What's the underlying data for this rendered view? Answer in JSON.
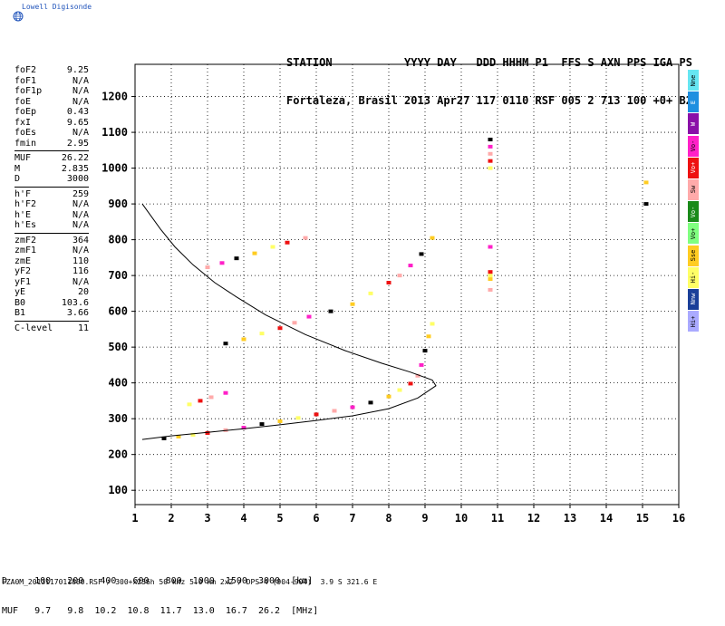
{
  "logo": {
    "text": "Lowell Digisonde"
  },
  "header": {
    "line1": "STATION           YYYY DAY   DDD HHHM P1  FFS S AXN PPS IGA PS",
    "line2": "Fortaleza, Brasil 2013 Apr27 117 0110 RSF 005 2 713 100 +0+ B2"
  },
  "params": {
    "group1": [
      {
        "label": "foF2",
        "value": "9.25"
      },
      {
        "label": "foF1",
        "value": "N/A"
      },
      {
        "label": "foF1p",
        "value": "N/A"
      },
      {
        "label": "foE",
        "value": "N/A"
      },
      {
        "label": "foEp",
        "value": "0.43"
      },
      {
        "label": "fxI",
        "value": "9.65"
      },
      {
        "label": "foEs",
        "value": "N/A"
      },
      {
        "label": "fmin",
        "value": "2.95"
      }
    ],
    "group2": [
      {
        "label": "MUF",
        "value": "26.22"
      },
      {
        "label": "M",
        "value": "2.835"
      },
      {
        "label": "D",
        "value": "3000"
      }
    ],
    "group3": [
      {
        "label": "h'F",
        "value": "259"
      },
      {
        "label": "h'F2",
        "value": "N/A"
      },
      {
        "label": "h'E",
        "value": "N/A"
      },
      {
        "label": "h'Es",
        "value": "N/A"
      }
    ],
    "group4": [
      {
        "label": "zmF2",
        "value": "364"
      },
      {
        "label": "zmF1",
        "value": "N/A"
      },
      {
        "label": "zmE",
        "value": "110"
      },
      {
        "label": "yF2",
        "value": "116"
      },
      {
        "label": "yF1",
        "value": "N/A"
      },
      {
        "label": "yE",
        "value": "20"
      },
      {
        "label": "B0",
        "value": "103.6"
      },
      {
        "label": "B1",
        "value": "3.66"
      }
    ],
    "group5": [
      {
        "label": "C-level",
        "value": "11"
      }
    ]
  },
  "legend": [
    {
      "label": "Nne",
      "color": "#66e6f2"
    },
    {
      "label": "E",
      "color": "#1e8fe0"
    },
    {
      "label": "W",
      "color": "#8a10a8"
    },
    {
      "label": "Vo-",
      "color": "#ff20c8"
    },
    {
      "label": "Vo+",
      "color": "#ee1111"
    },
    {
      "label": "Sw",
      "color": "#ffaaaa"
    },
    {
      "label": "Vo-",
      "color": "#1a8a1a"
    },
    {
      "label": "Vo+",
      "color": "#80ff80"
    },
    {
      "label": "Sse",
      "color": "#ffcc22"
    },
    {
      "label": "Hi-",
      "color": "#ffff66"
    },
    {
      "label": "Nnw",
      "color": "#1a3f99"
    },
    {
      "label": "Hi+",
      "color": "#aaaaff"
    }
  ],
  "muf_table": {
    "d_line": "D     100   200   400   600   800  1000  1500  3000  [km]",
    "muf_line": "MUF   9.7   9.8  10.2  10.8  11.7  13.0  16.7  26.2  [MHz]"
  },
  "footer": {
    "text": "FZA0M_2013117011000.RSF / 300+x256h 50 kHz 5.0 km 2x2 / DPS-4 (904-904)  3.9 S 321.6 E"
  },
  "chart_data": {
    "type": "scatter",
    "x_ticks": [
      1,
      2,
      3,
      4,
      5,
      6,
      7,
      8,
      9,
      10,
      11,
      12,
      13,
      14,
      15,
      16
    ],
    "y_ticks": [
      100,
      200,
      300,
      400,
      500,
      600,
      700,
      800,
      900,
      1000,
      1100,
      1200
    ],
    "xlim": [
      1,
      16
    ],
    "ylim": [
      60,
      1290
    ],
    "grid": true,
    "series": [
      {
        "points": [
          [
            1.8,
            245
          ],
          [
            2.2,
            250
          ],
          [
            2.6,
            255
          ],
          [
            3.0,
            260
          ],
          [
            3.5,
            268
          ],
          [
            4.0,
            275
          ],
          [
            4.5,
            285
          ],
          [
            5.0,
            293
          ],
          [
            5.5,
            302
          ],
          [
            6.0,
            312
          ],
          [
            6.5,
            322
          ],
          [
            7.0,
            332
          ],
          [
            7.5,
            345
          ],
          [
            8.0,
            362
          ],
          [
            8.3,
            380
          ],
          [
            8.6,
            398
          ],
          [
            8.8,
            420
          ],
          [
            8.9,
            450
          ],
          [
            9.0,
            490
          ],
          [
            9.1,
            530
          ],
          [
            9.2,
            565
          ]
        ]
      },
      {
        "points": [
          [
            2.5,
            340
          ],
          [
            2.8,
            350
          ],
          [
            3.1,
            360
          ],
          [
            3.5,
            372
          ]
        ]
      },
      {
        "points": [
          [
            3.0,
            723
          ],
          [
            3.4,
            735
          ],
          [
            3.8,
            748
          ],
          [
            4.3,
            762
          ],
          [
            4.8,
            780
          ],
          [
            5.2,
            792
          ],
          [
            5.7,
            805
          ]
        ]
      },
      {
        "points": [
          [
            3.5,
            510
          ],
          [
            4.0,
            522
          ],
          [
            4.5,
            538
          ],
          [
            5.0,
            553
          ],
          [
            5.4,
            568
          ],
          [
            5.8,
            585
          ],
          [
            6.4,
            600
          ],
          [
            7.0,
            620
          ],
          [
            7.5,
            650
          ],
          [
            8.0,
            680
          ],
          [
            8.3,
            700
          ],
          [
            8.6,
            728
          ],
          [
            8.9,
            760
          ],
          [
            9.2,
            805
          ]
        ]
      },
      {
        "points": [
          [
            10.8,
            1000
          ],
          [
            10.8,
            1020
          ],
          [
            10.8,
            1040
          ],
          [
            10.8,
            1060
          ],
          [
            10.8,
            1080
          ],
          [
            10.8,
            690
          ],
          [
            10.8,
            700
          ],
          [
            10.8,
            710
          ],
          [
            10.8,
            660
          ],
          [
            10.8,
            780
          ],
          [
            15.1,
            900
          ],
          [
            15.1,
            960
          ]
        ]
      }
    ],
    "curve": [
      [
        1.2,
        242
      ],
      [
        2,
        252
      ],
      [
        3,
        262
      ],
      [
        4,
        272
      ],
      [
        5,
        283
      ],
      [
        6,
        295
      ],
      [
        7,
        308
      ],
      [
        8,
        328
      ],
      [
        8.8,
        358
      ],
      [
        9.3,
        392
      ],
      [
        9.2,
        408
      ],
      [
        8.6,
        430
      ],
      [
        7.8,
        455
      ],
      [
        6.8,
        490
      ],
      [
        5.7,
        535
      ],
      [
        4.6,
        590
      ],
      [
        3.8,
        640
      ],
      [
        3.2,
        680
      ],
      [
        2.6,
        730
      ],
      [
        2.1,
        780
      ],
      [
        1.7,
        830
      ],
      [
        1.2,
        900
      ]
    ]
  }
}
